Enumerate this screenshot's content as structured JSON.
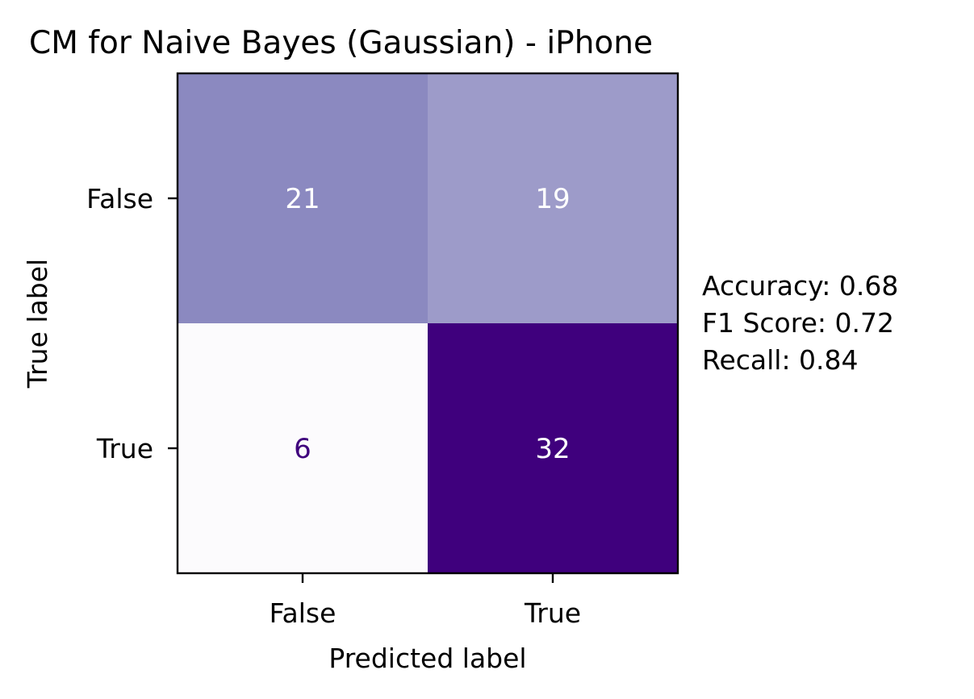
{
  "chart_data": {
    "type": "heatmap",
    "title": "CM for Naive Bayes (Gaussian) - iPhone",
    "xlabel": "Predicted label",
    "ylabel": "True label",
    "x_categories": [
      "False",
      "True"
    ],
    "y_categories": [
      "False",
      "True"
    ],
    "matrix": [
      [
        21,
        19
      ],
      [
        6,
        32
      ]
    ],
    "colormap": "Purples",
    "color_range": [
      "#fcfbfd",
      "#3f007d"
    ],
    "cell_colors": [
      [
        "#8b89c0",
        "#9d9bc9"
      ],
      [
        "#fcfbfd",
        "#3f007d"
      ]
    ],
    "text_colors": [
      [
        "#ffffff",
        "#ffffff"
      ],
      [
        "#3f007d",
        "#ffffff"
      ]
    ],
    "metrics": [
      "Accuracy: 0.68",
      "F1 Score: 0.72",
      "Recall: 0.84"
    ]
  }
}
